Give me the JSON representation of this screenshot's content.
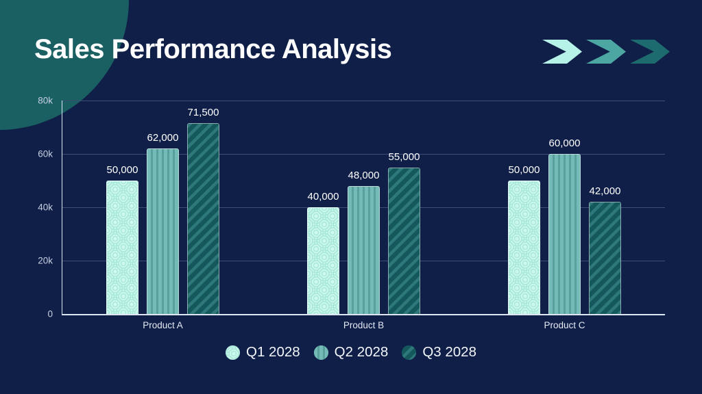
{
  "title": "Sales Performance Analysis",
  "colors": {
    "background": "#101f48",
    "corner_circle": "#1a5f62",
    "title_text": "#ffffff",
    "axis_line": "#dde6f2",
    "grid_line": "#3f4e76",
    "tick_text": "#c6cfe1",
    "value_text": "#ffffff",
    "category_text": "#e6ebf5",
    "legend_text": "#f3f6fb"
  },
  "decor": {
    "chevrons": [
      "#b7f2e8",
      "#4ca6a1",
      "#1d6b6e"
    ]
  },
  "chart_data": {
    "type": "bar",
    "title": "Sales Performance Analysis",
    "categories": [
      "Product A",
      "Product B",
      "Product C"
    ],
    "series": [
      {
        "name": "Q1 2028",
        "values": [
          50000,
          40000,
          50000
        ],
        "labels": [
          "50,000",
          "40,000",
          "50,000"
        ],
        "color": "#cdf8ee",
        "pattern": "scallop",
        "pattern_color": "#a8e8d9"
      },
      {
        "name": "Q2 2028",
        "values": [
          62000,
          48000,
          60000
        ],
        "labels": [
          "62,000",
          "48,000",
          "60,000"
        ],
        "color": "#74bab6",
        "pattern": "vstripe",
        "pattern_color": "#57a09b"
      },
      {
        "name": "Q3 2028",
        "values": [
          71500,
          55000,
          42000
        ],
        "labels": [
          "71,500",
          "55,000",
          "42,000"
        ],
        "color": "#14585c",
        "pattern": "dstripe",
        "pattern_color": "#2e787a"
      }
    ],
    "ylim": [
      0,
      80000
    ],
    "yticks": [
      {
        "value": 0,
        "label": "0"
      },
      {
        "value": 20000,
        "label": "20k"
      },
      {
        "value": 40000,
        "label": "40k"
      },
      {
        "value": 60000,
        "label": "60k"
      },
      {
        "value": 80000,
        "label": "80k"
      }
    ],
    "grid": true,
    "legend_position": "bottom"
  }
}
